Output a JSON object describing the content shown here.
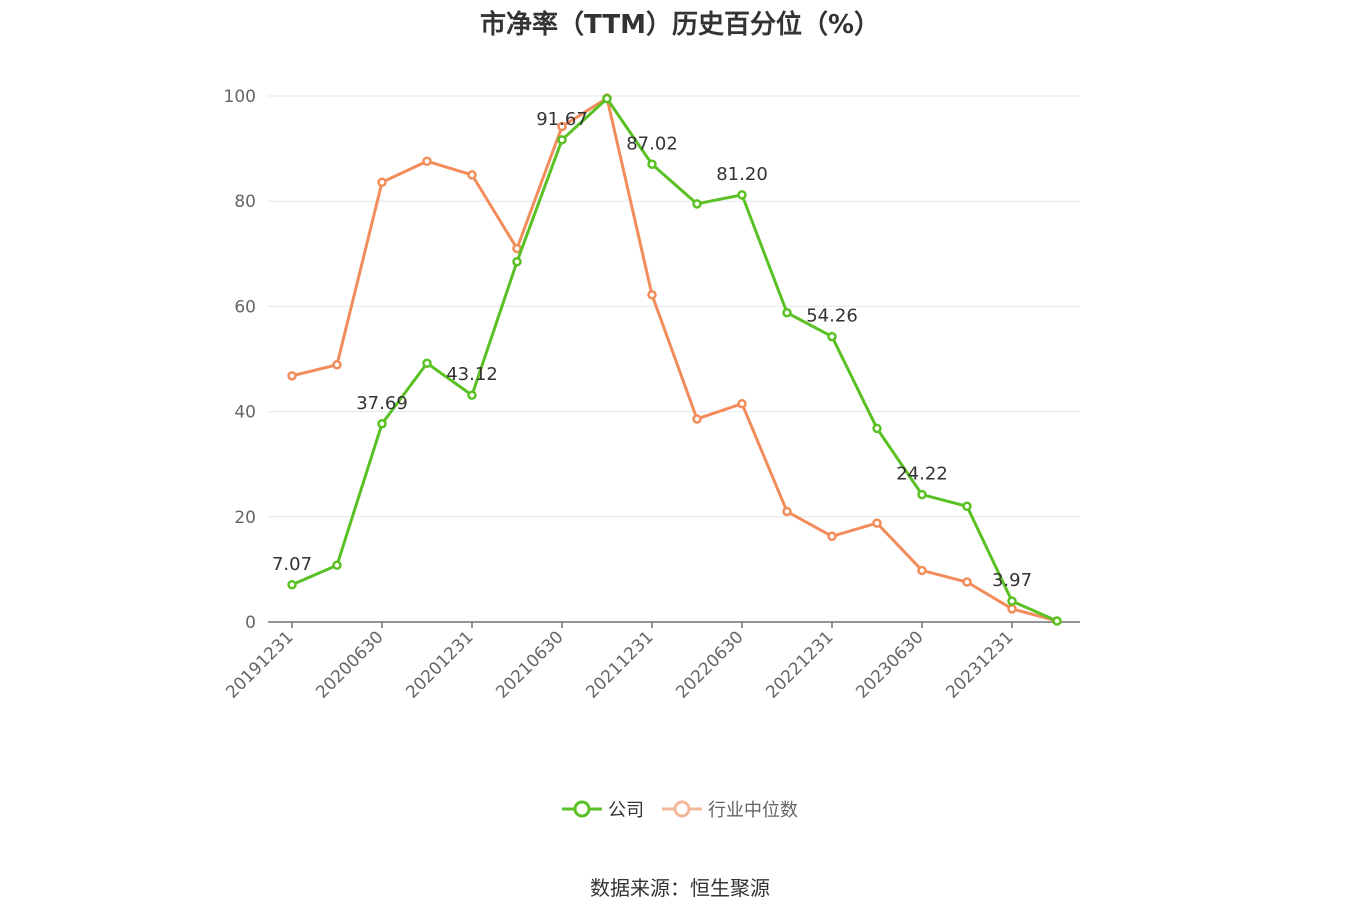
{
  "chart_data": {
    "type": "line",
    "title": "市净率（TTM）历史百分位（%）",
    "ylim": [
      0,
      100
    ],
    "yticks": [
      0,
      20,
      40,
      60,
      80,
      100
    ],
    "x": [
      "20191231",
      "20200331",
      "20200630",
      "20200930",
      "20201231",
      "20210331",
      "20210630",
      "20210930",
      "20211231",
      "20220331",
      "20220630",
      "20220930",
      "20221231",
      "20230331",
      "20230630",
      "20230930",
      "20231231",
      "20240331"
    ],
    "xtick_labels": [
      "20191231",
      "20200630",
      "20201231",
      "20210630",
      "20211231",
      "20220630",
      "20221231",
      "20230630",
      "20231231"
    ],
    "series": [
      {
        "name": "公司",
        "color": "#5ac124",
        "values": [
          7.07,
          10.8,
          37.69,
          49.2,
          43.12,
          68.5,
          91.67,
          99.5,
          87.02,
          79.5,
          81.2,
          58.8,
          54.26,
          36.8,
          24.22,
          22.0,
          3.97,
          0.2
        ],
        "labels": [
          "7.07",
          null,
          "37.69",
          null,
          "43.12",
          null,
          "91.67",
          null,
          "87.02",
          null,
          "81.20",
          null,
          "54.26",
          null,
          "24.22",
          null,
          "3.97",
          null
        ]
      },
      {
        "name": "行业中位数",
        "color": "#f28c5a",
        "values": [
          46.8,
          48.9,
          83.6,
          87.6,
          85.0,
          71.0,
          94.2,
          99.6,
          62.2,
          38.6,
          41.5,
          21.0,
          16.3,
          18.8,
          9.8,
          7.6,
          2.5,
          0.2
        ]
      }
    ],
    "grid": true,
    "legend_position": "bottom"
  },
  "legend": {
    "company": "公司",
    "industry": "行业中位数"
  },
  "source_text": "数据来源：恒生聚源"
}
